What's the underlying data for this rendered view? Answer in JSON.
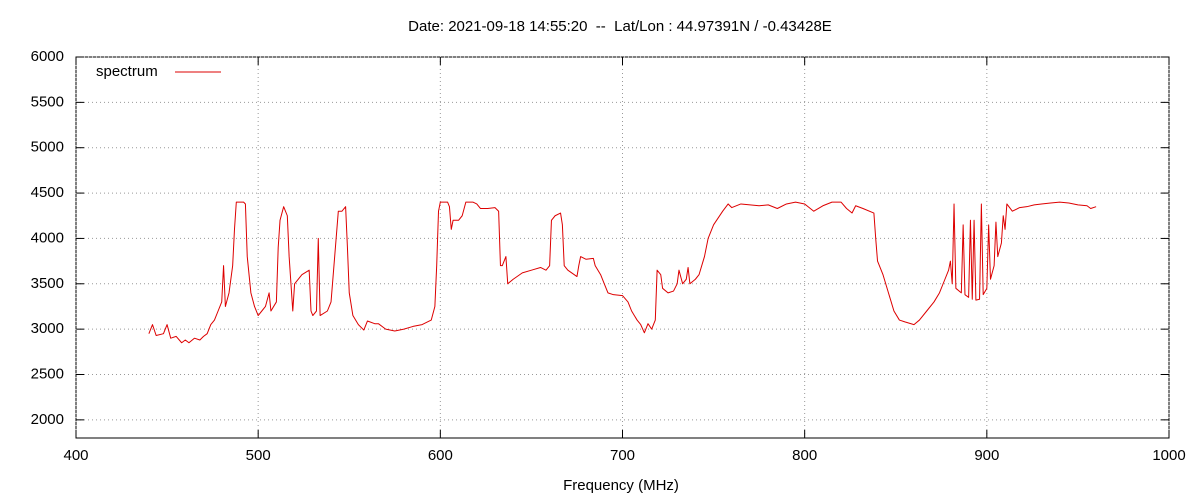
{
  "chart_data": {
    "type": "line",
    "title": "Date: 2021-09-18 14:55:20  --  Lat/Lon : 44.97391N / -0.43428E",
    "x_label": "Frequency (MHz)",
    "xlim": [
      400,
      1000
    ],
    "xticks": [
      400,
      500,
      600,
      700,
      800,
      900,
      1000
    ],
    "ylim": [
      1800,
      6000
    ],
    "yticks": [
      2000,
      2500,
      3000,
      3500,
      4000,
      4500,
      5000,
      5500,
      6000
    ],
    "grid": true,
    "legend": "top-left",
    "x": [
      440,
      442,
      444,
      448,
      450,
      452,
      455,
      458,
      460,
      462,
      465,
      468,
      470,
      472,
      474,
      476,
      478,
      480,
      481,
      482,
      484,
      486,
      487,
      488,
      492,
      493,
      494,
      496,
      498,
      500,
      502,
      504,
      506,
      507,
      510,
      511,
      512,
      514,
      516,
      517,
      518,
      519,
      520,
      524,
      528,
      529,
      530,
      532,
      533,
      534,
      538,
      540,
      542,
      544,
      546,
      548,
      549,
      550,
      552,
      555,
      558,
      560,
      564,
      566,
      570,
      575,
      580,
      585,
      590,
      595,
      597,
      598,
      599,
      600,
      604,
      605,
      606,
      607,
      610,
      612,
      614,
      618,
      620,
      622,
      626,
      630,
      632,
      633,
      634,
      636,
      637,
      640,
      645,
      650,
      655,
      658,
      660,
      661,
      663,
      666,
      667,
      668,
      670,
      675,
      676,
      677,
      680,
      684,
      685,
      688,
      690,
      692,
      695,
      700,
      703,
      705,
      708,
      710,
      712,
      714,
      716,
      718,
      719,
      721,
      722,
      725,
      728,
      730,
      731,
      733,
      735,
      736,
      737,
      740,
      742,
      745,
      747,
      750,
      755,
      758,
      760,
      765,
      770,
      775,
      780,
      785,
      790,
      795,
      800,
      805,
      810,
      815,
      820,
      823,
      826,
      828,
      832,
      838,
      839,
      840,
      843,
      846,
      849,
      852,
      855,
      860,
      863,
      867,
      871,
      874,
      877,
      879,
      880,
      881,
      882,
      883,
      886,
      887,
      888,
      890,
      891,
      892,
      893,
      894,
      896,
      897,
      898,
      900,
      901,
      902,
      904,
      905,
      906,
      908,
      909,
      910,
      911,
      914,
      918,
      922,
      926,
      930,
      935,
      940,
      945,
      950,
      955,
      957,
      960
    ],
    "series": [
      {
        "name": "spectrum",
        "color": "#dd0000",
        "values": [
          2950,
          3050,
          2930,
          2950,
          3050,
          2900,
          2920,
          2850,
          2880,
          2850,
          2900,
          2880,
          2920,
          2950,
          3050,
          3100,
          3200,
          3300,
          3700,
          3250,
          3400,
          3700,
          4100,
          4400,
          4400,
          4380,
          3800,
          3400,
          3250,
          3150,
          3200,
          3250,
          3400,
          3200,
          3300,
          3900,
          4200,
          4350,
          4250,
          3800,
          3500,
          3200,
          3500,
          3600,
          3650,
          3200,
          3150,
          3200,
          4000,
          3150,
          3200,
          3300,
          3800,
          4300,
          4300,
          4350,
          3900,
          3400,
          3150,
          3050,
          2990,
          3090,
          3060,
          3060,
          3000,
          2980,
          3000,
          3030,
          3050,
          3100,
          3250,
          3700,
          4300,
          4400,
          4400,
          4350,
          4100,
          4200,
          4200,
          4250,
          4400,
          4400,
          4380,
          4330,
          4330,
          4340,
          4300,
          3700,
          3700,
          3800,
          3500,
          3550,
          3620,
          3650,
          3680,
          3650,
          3700,
          4200,
          4250,
          4280,
          4150,
          3700,
          3650,
          3580,
          3700,
          3800,
          3770,
          3780,
          3700,
          3600,
          3500,
          3400,
          3380,
          3370,
          3300,
          3200,
          3100,
          3050,
          2960,
          3060,
          3000,
          3100,
          3650,
          3600,
          3450,
          3400,
          3420,
          3500,
          3650,
          3500,
          3550,
          3680,
          3500,
          3550,
          3600,
          3800,
          4000,
          4150,
          4300,
          4380,
          4340,
          4380,
          4370,
          4360,
          4370,
          4330,
          4380,
          4400,
          4380,
          4300,
          4360,
          4400,
          4400,
          4330,
          4280,
          4360,
          4330,
          4280,
          4000,
          3750,
          3600,
          3400,
          3200,
          3100,
          3080,
          3050,
          3100,
          3200,
          3300,
          3400,
          3550,
          3650,
          3750,
          3500,
          4380,
          3450,
          3400,
          4150,
          3380,
          3350,
          4200,
          3330,
          4200,
          3320,
          3330,
          4380,
          3380,
          3450,
          4150,
          3550,
          3700,
          4180,
          3800,
          3950,
          4250,
          4100,
          4380,
          4300,
          4340,
          4350,
          4370,
          4380,
          4390,
          4400,
          4390,
          4370,
          4360,
          4330,
          4350
        ]
      }
    ]
  }
}
